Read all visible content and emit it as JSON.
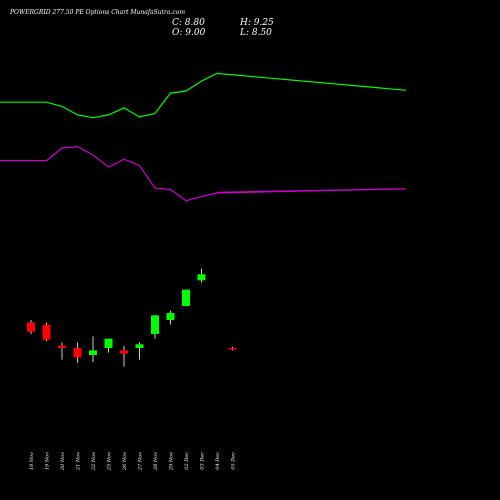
{
  "header": {
    "title": "POWERGRID 277.50  PE Options  Chart MunafaSutra.com",
    "close": "C: 8.80",
    "high": "H: 9.25",
    "open": "O: 9.00",
    "low": "L: 8.50"
  },
  "colors": {
    "background": "#000000",
    "up": "#00ff00",
    "down": "#ff0000",
    "wick": "#ffffff",
    "line_green": "#00ff00",
    "line_purple": "#cc00cc",
    "text": "#ffffff"
  },
  "chart_data": {
    "type": "candlestick",
    "categories": [
      "18 Nov",
      "19 Nov",
      "20 Nov",
      "21 Nov",
      "22 Nov",
      "25 Nov",
      "26 Nov",
      "27 Nov",
      "28 Nov",
      "29 Nov",
      "02 Dec",
      "03 Dec",
      "04 Dec",
      "05 Dec"
    ],
    "candles": [
      {
        "open": 14.5,
        "high": 15.0,
        "low": 12.0,
        "close": 12.5
      },
      {
        "open": 14.0,
        "high": 14.5,
        "low": 10.5,
        "close": 10.8
      },
      {
        "open": 9.5,
        "high": 10.2,
        "low": 6.5,
        "close": 9.0
      },
      {
        "open": 9.0,
        "high": 10.2,
        "low": 5.8,
        "close": 7.0
      },
      {
        "open": 7.5,
        "high": 11.5,
        "low": 6.0,
        "close": 8.5
      },
      {
        "open": 9.0,
        "high": 11.0,
        "low": 8.0,
        "close": 11.0
      },
      {
        "open": 8.5,
        "high": 9.5,
        "low": 5.0,
        "close": 7.8
      },
      {
        "open": 9.0,
        "high": 10.2,
        "low": 6.5,
        "close": 9.8
      },
      {
        "open": 12.0,
        "high": 16.0,
        "low": 11.0,
        "close": 16.0
      },
      {
        "open": 15.0,
        "high": 17.0,
        "low": 14.0,
        "close": 16.5
      },
      {
        "open": 18.0,
        "high": 21.5,
        "low": 18.0,
        "close": 21.5
      },
      {
        "open": 23.5,
        "high": 26.0,
        "low": 23.0,
        "close": 24.8
      },
      null,
      {
        "open": 9.0,
        "high": 9.25,
        "low": 8.5,
        "close": 8.8
      }
    ],
    "lines": [
      {
        "color": "green",
        "values": [
          76.0,
          76.0,
          75.4,
          74.2,
          73.8,
          74.2,
          75.2,
          73.9,
          74.4,
          77.3,
          77.6,
          79.0,
          80.1,
          77.7
        ]
      },
      {
        "color": "purple",
        "values": [
          67.7,
          67.7,
          69.5,
          69.7,
          68.5,
          66.8,
          67.9,
          67.0,
          63.8,
          63.6,
          62.0,
          62.6,
          63.1,
          63.7
        ]
      },
      {
        "color": "purple_extension",
        "values": [
          null,
          null,
          null,
          null,
          null,
          null,
          null,
          null,
          null,
          null,
          null,
          null,
          63.2,
          63.7
        ]
      }
    ],
    "y_scale": "independent-overlay",
    "grid": false,
    "legend": "none"
  }
}
